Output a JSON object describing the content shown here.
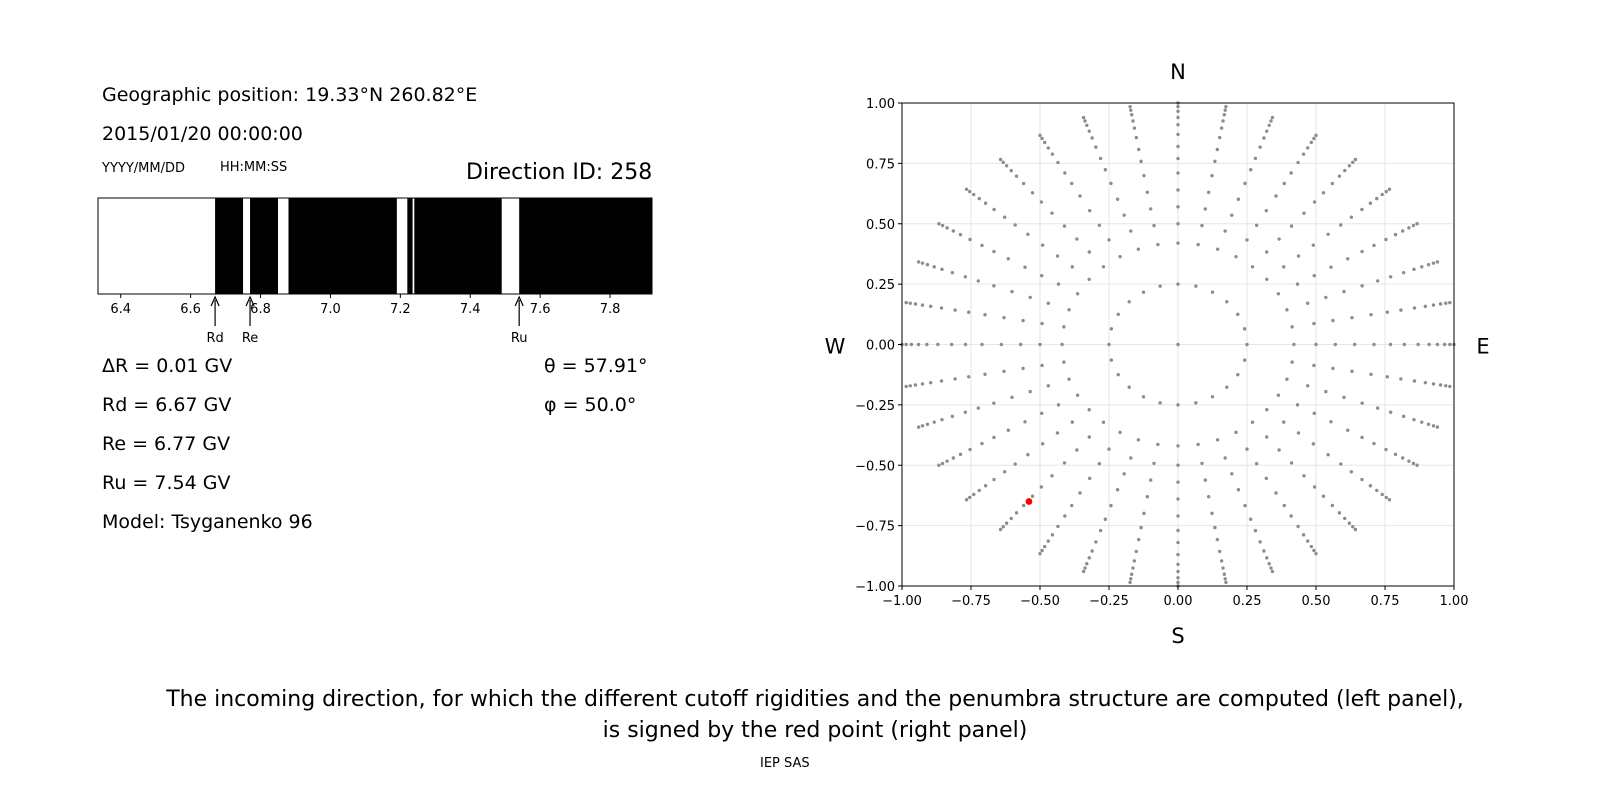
{
  "left_panel": {
    "geo_position": "Geographic position: 19.33°N 260.82°E",
    "datetime": "2015/01/20 00:00:00",
    "date_format": "YYYY/MM/DD",
    "time_format": "HH:MM:SS",
    "direction_id": "Direction ID: 258",
    "delta_r": "ΔR = 0.01 GV",
    "rd": "Rd = 6.67 GV",
    "re": "Re = 6.77 GV",
    "ru": "Ru = 7.54 GV",
    "model": "Model: Tsyganenko 96",
    "theta": "θ = 57.91°",
    "phi": "φ = 50.0°"
  },
  "caption": {
    "line1": "The incoming direction, for which the different cutoff rigidities and the penumbra structure are computed (left panel),",
    "line2": "is signed by the red point (right panel)",
    "footer": "IEP SAS"
  },
  "chart_data": [
    {
      "type": "penumbra-bar",
      "xlim": [
        6.335,
        7.92
      ],
      "x_ticks": [
        "6.4",
        "6.6",
        "6.8",
        "7.0",
        "7.2",
        "7.4",
        "7.6",
        "7.8"
      ],
      "x_tick_values": [
        6.4,
        6.6,
        6.8,
        7.0,
        7.2,
        7.4,
        7.6,
        7.8
      ],
      "forbidden_color": "#000000",
      "allowed_color": "#ffffff",
      "forbidden_segments": [
        [
          6.67,
          6.75
        ],
        [
          6.77,
          6.85
        ],
        [
          6.88,
          7.19
        ],
        [
          7.22,
          7.235
        ],
        [
          7.24,
          7.49
        ],
        [
          7.54,
          7.92
        ]
      ],
      "markers": [
        {
          "label": "Rd",
          "value": 6.67
        },
        {
          "label": "Re",
          "value": 6.77
        },
        {
          "label": "Ru",
          "value": 7.54
        }
      ]
    },
    {
      "type": "scatter",
      "xlim": [
        -1.0,
        1.0
      ],
      "ylim": [
        -1.0,
        1.0
      ],
      "x_ticks": [
        "−1.00",
        "−0.75",
        "−0.50",
        "−0.25",
        "0.00",
        "0.25",
        "0.50",
        "0.75",
        "1.00"
      ],
      "y_ticks": [
        "1.00",
        "0.75",
        "0.50",
        "0.25",
        "0.00",
        "−0.25",
        "−0.50",
        "−0.75",
        "−1.00"
      ],
      "grid": true,
      "directions": {
        "north": "N",
        "south": "S",
        "west": "W",
        "east": "E"
      },
      "point_color": "#8c8c8c",
      "highlight_color": "#ff0000",
      "grid_rings": {
        "radii": [
          0.25,
          0.42,
          0.5,
          0.57,
          0.64,
          0.71,
          0.77,
          0.82,
          0.87,
          0.91,
          0.94,
          0.966,
          0.985,
          1.0
        ],
        "azimuths_deg": [
          0,
          10,
          20,
          30,
          40,
          50,
          60,
          70,
          80,
          90,
          100,
          110,
          120,
          130,
          140,
          150,
          160,
          170,
          180,
          190,
          200,
          210,
          220,
          230,
          240,
          250,
          260,
          270,
          280,
          290,
          300,
          310,
          320,
          330,
          340,
          350
        ],
        "inner_ring_radius": 0.25,
        "inner_ring_count": 24
      },
      "highlight_point": {
        "x": -0.54,
        "y": -0.65
      }
    }
  ]
}
